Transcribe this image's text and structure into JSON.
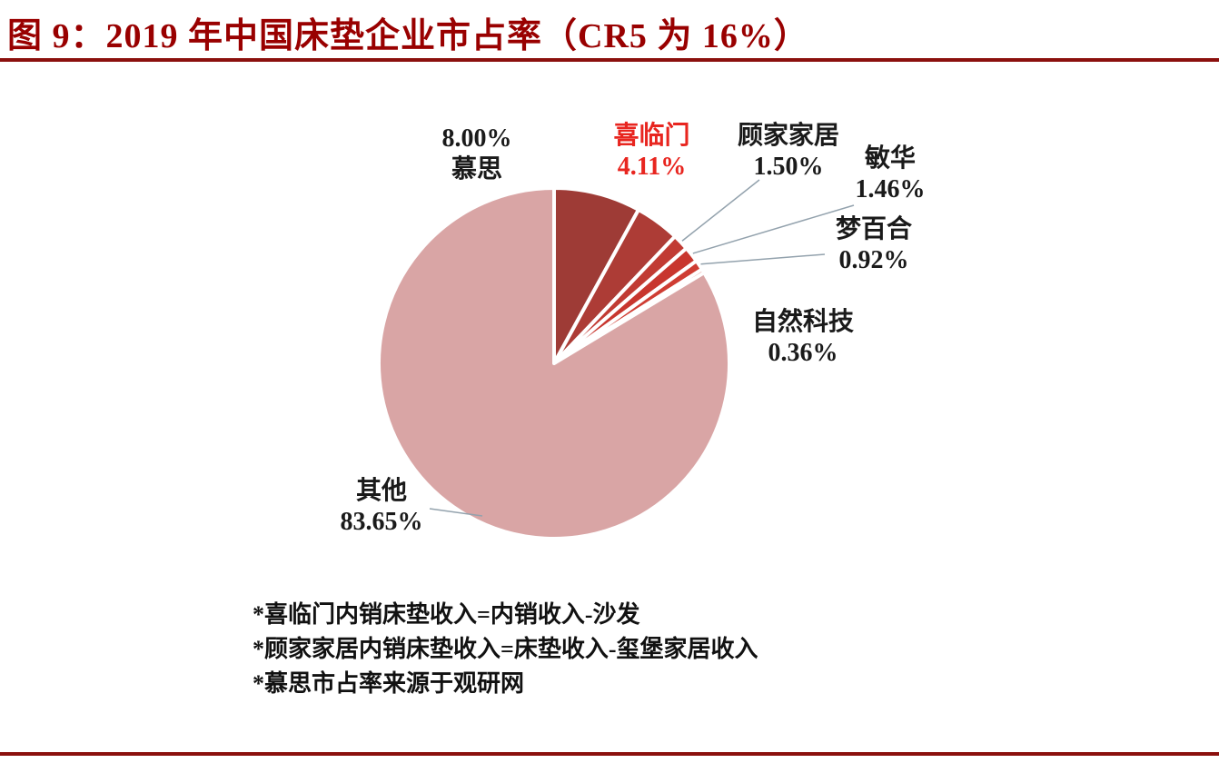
{
  "header": {
    "title": "图 9：2019 年中国床垫企业市占率（CR5 为 16%）",
    "accent_color": "#990000"
  },
  "chart_data": {
    "type": "pie",
    "title": "2019 年中国床垫企业市占率（CR5 为 16%）",
    "cr5": "16%",
    "start_angle_deg": 0,
    "direction": "clockwise",
    "legend_position": "none",
    "highlight_color": "#e8251f",
    "slices": [
      {
        "label": "慕思",
        "value": 8.0,
        "display": "8.00%",
        "color": "#9e3b36"
      },
      {
        "label": "喜临门",
        "value": 4.11,
        "display": "4.11%",
        "color": "#ad3c36",
        "highlight": true
      },
      {
        "label": "顾家家居",
        "value": 1.5,
        "display": "1.50%",
        "color": "#c13b33"
      },
      {
        "label": "敏华",
        "value": 1.46,
        "display": "1.46%",
        "color": "#c8362e"
      },
      {
        "label": "梦百合",
        "value": 0.92,
        "display": "0.92%",
        "color": "#cf3d33"
      },
      {
        "label": "自然科技",
        "value": 0.36,
        "display": "0.36%",
        "color": "#d4453b"
      },
      {
        "label": "其他",
        "value": 83.65,
        "display": "83.65%",
        "color": "#d9a5a5"
      }
    ]
  },
  "footnotes": [
    "*喜临门内销床垫收入=内销收入-沙发",
    "*顾家家居内销床垫收入=床垫收入-玺堡家居收入",
    "*慕思市占率来源于观研网"
  ]
}
